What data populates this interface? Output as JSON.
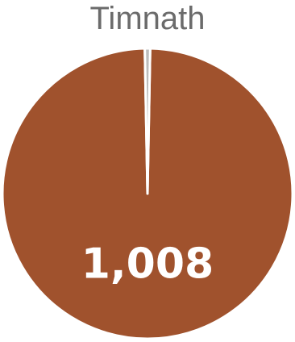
{
  "chart_data": {
    "type": "pie",
    "title": "Timnath",
    "slices": [
      {
        "value": 1008,
        "label": "1,008",
        "color": "#a0522d"
      },
      {
        "value": 6,
        "label": "",
        "color": "#bcbcbc"
      }
    ]
  }
}
